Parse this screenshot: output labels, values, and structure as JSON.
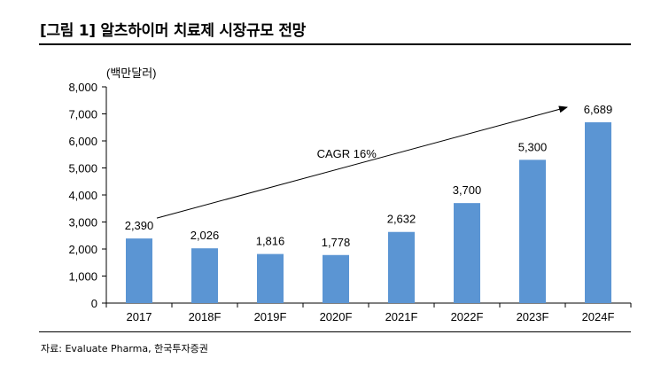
{
  "header": {
    "title": "[그림 1] 알츠하이머 치료제 시장규모 전망"
  },
  "footer": {
    "source": "자료: Evaluate Pharma, 한국투자증권"
  },
  "colors": {
    "bar": "#5b95d3",
    "text": "#000000",
    "rule": "#000000"
  },
  "chart_data": {
    "type": "bar",
    "title": "",
    "unit_label": "(백만달러)",
    "xlabel": "",
    "ylabel": "",
    "categories": [
      "2017",
      "2018F",
      "2019F",
      "2020F",
      "2021F",
      "2022F",
      "2023F",
      "2024F"
    ],
    "values": [
      2390,
      2026,
      1816,
      1778,
      2632,
      3700,
      5300,
      6689
    ],
    "data_labels": [
      "2,390",
      "2,026",
      "1,816",
      "1,778",
      "2,632",
      "3,700",
      "5,300",
      "6,689"
    ],
    "ylim": [
      0,
      8000
    ],
    "yticks": [
      0,
      1000,
      2000,
      3000,
      4000,
      5000,
      6000,
      7000,
      8000
    ],
    "ytick_labels": [
      "0",
      "1,000",
      "2,000",
      "3,000",
      "4,000",
      "5,000",
      "6,000",
      "7,000",
      "8,000"
    ],
    "grid": false,
    "legend": "none",
    "annotation": {
      "text": "CAGR 16%",
      "arrow_from_category": "2017",
      "arrow_to_category": "2024F"
    }
  }
}
